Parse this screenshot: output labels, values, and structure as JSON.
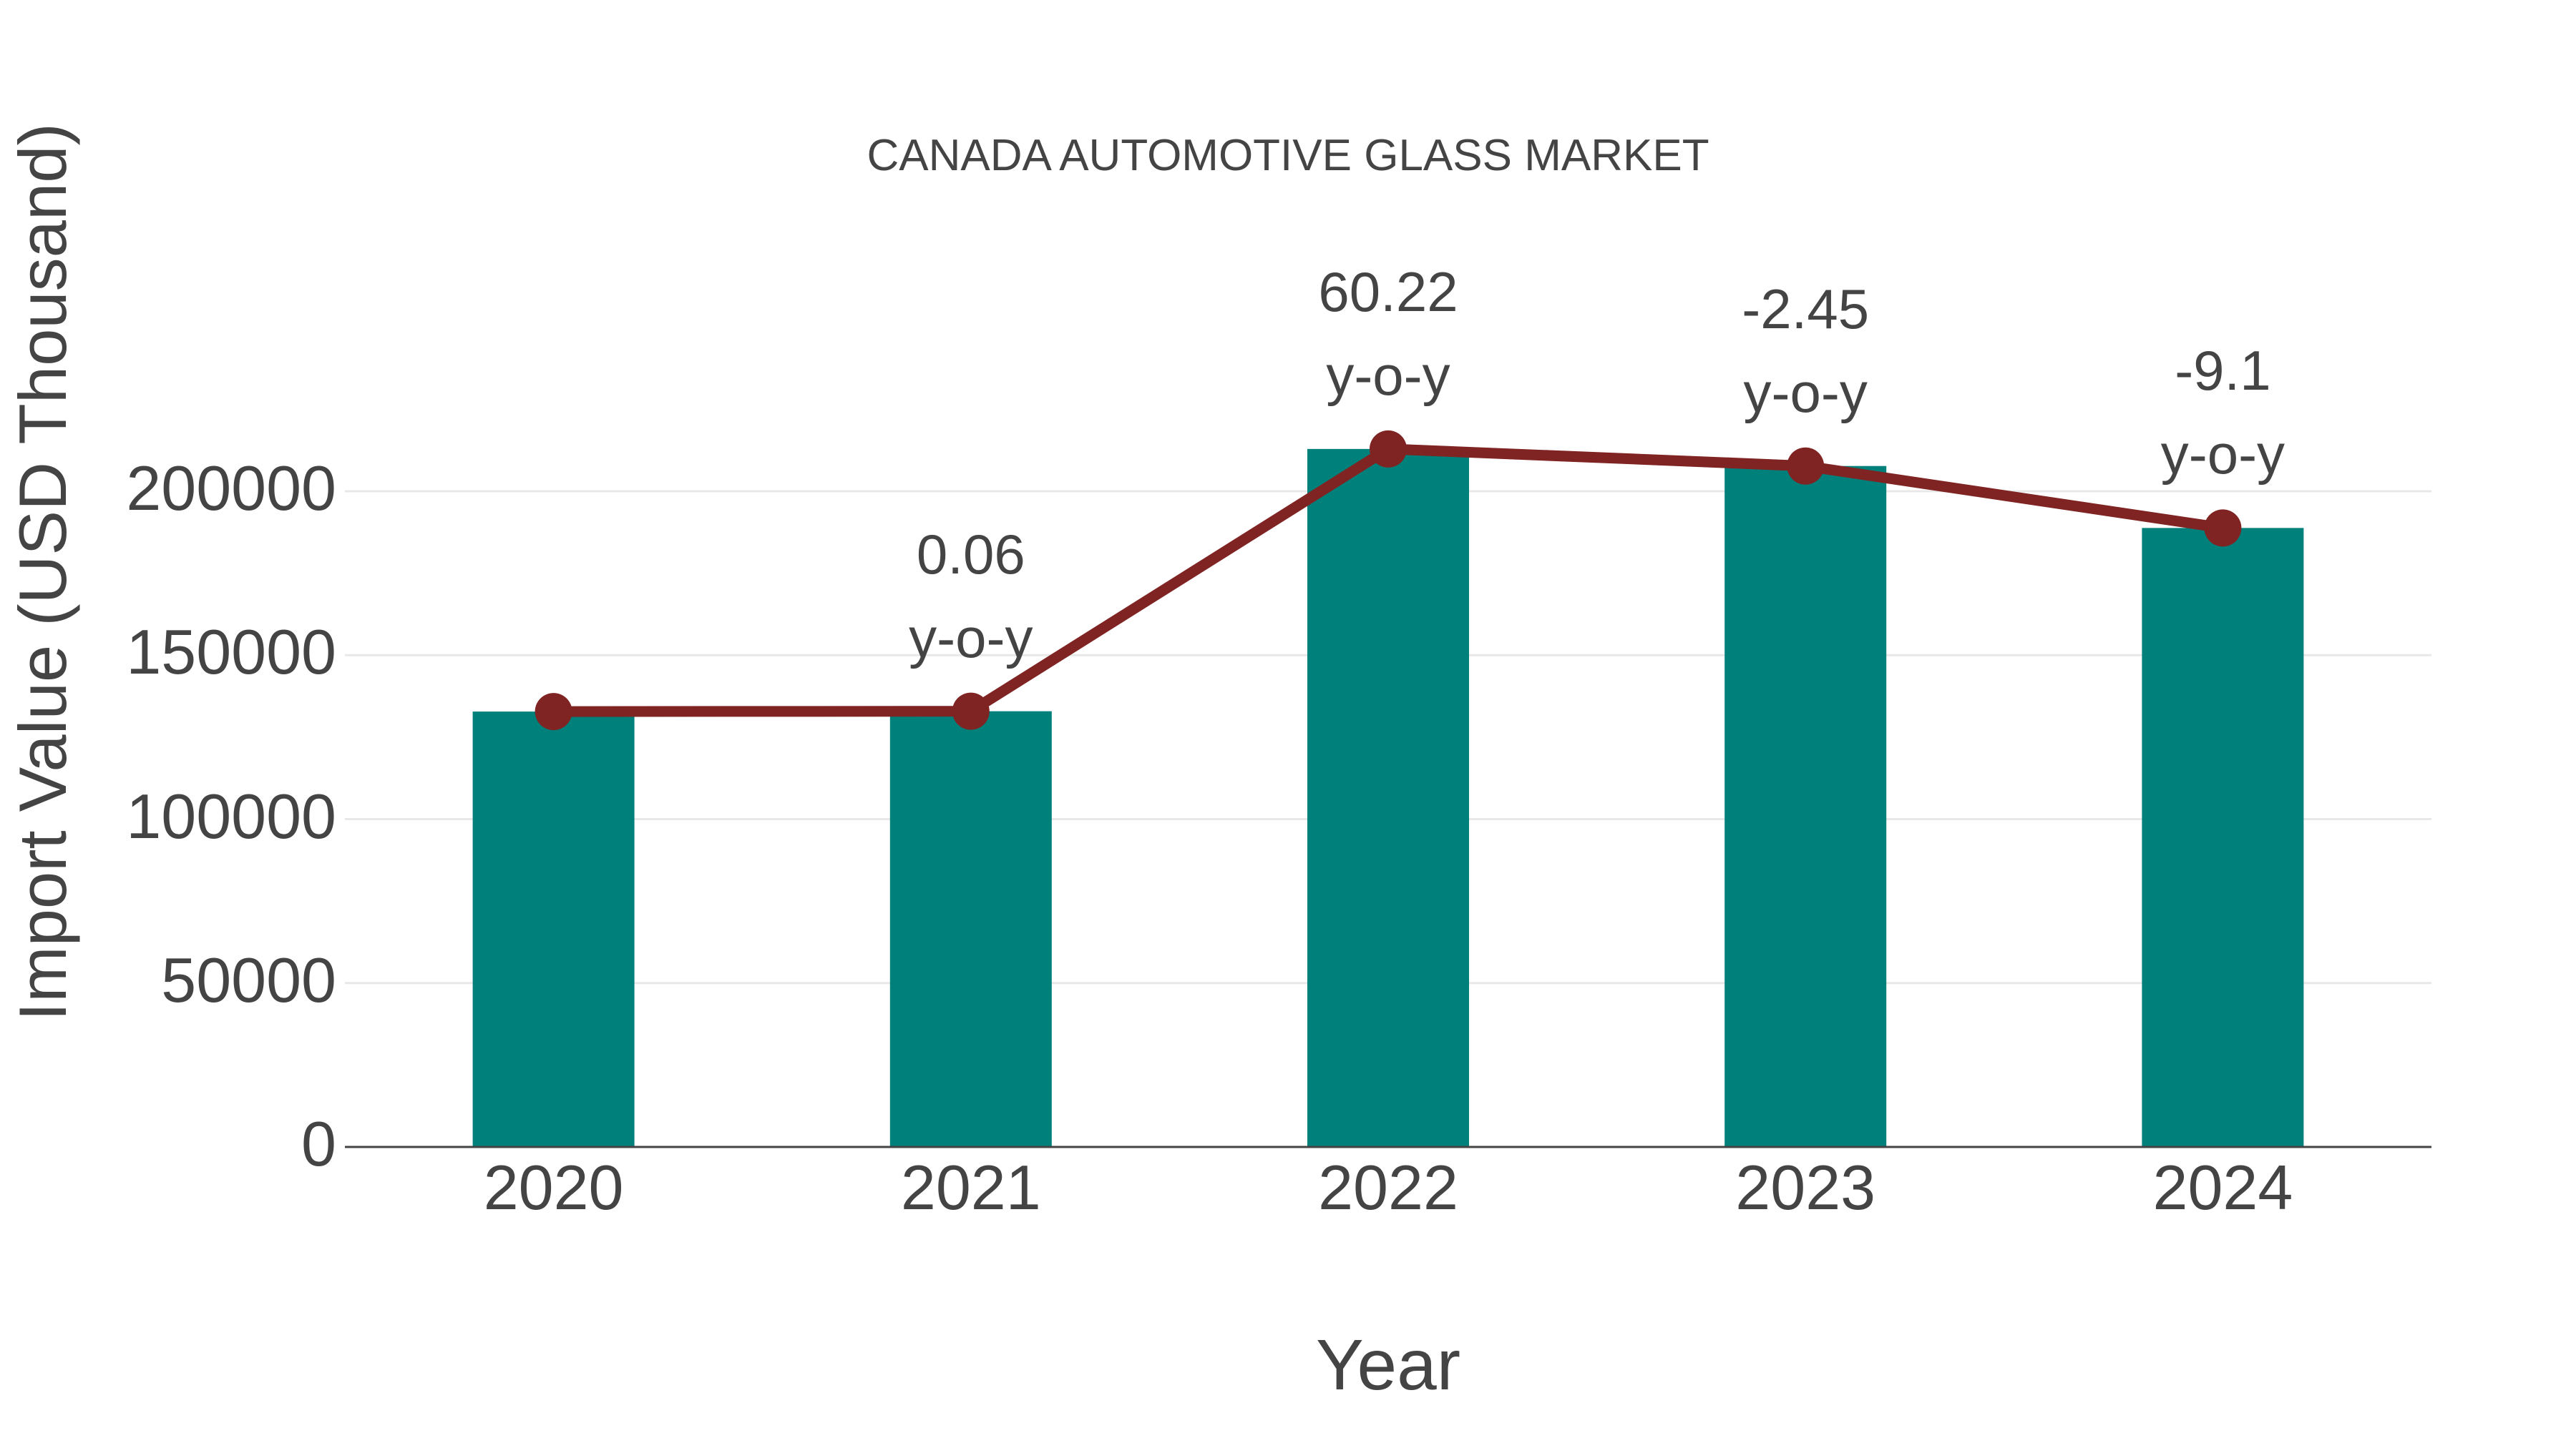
{
  "title": "CANADA AUTOMOTIVE GLASS MARKET",
  "chart_data": {
    "type": "bar",
    "title": "CANADA AUTOMOTIVE GLASS MARKET",
    "xlabel": "Year",
    "ylabel": "Import Value (USD Thousand)",
    "categories": [
      "2020",
      "2021",
      "2022",
      "2023",
      "2024"
    ],
    "series": [
      {
        "name": "import-value-bars",
        "type": "bar",
        "color": "#00807B",
        "values": [
          132800,
          132900,
          212900,
          207700,
          188800
        ]
      },
      {
        "name": "import-value-trend-line",
        "type": "line",
        "color": "#7F2423",
        "values": [
          132800,
          132900,
          212900,
          207700,
          188800
        ]
      }
    ],
    "annotations": [
      {
        "x": "2021",
        "lines": [
          "0.06",
          "y-o-y"
        ]
      },
      {
        "x": "2022",
        "lines": [
          "60.22",
          "y-o-y"
        ]
      },
      {
        "x": "2023",
        "lines": [
          "-2.45",
          "y-o-y"
        ]
      },
      {
        "x": "2024",
        "lines": [
          "-9.1",
          "y-o-y"
        ]
      }
    ],
    "yticks": [
      0,
      50000,
      100000,
      150000,
      200000
    ],
    "ylim": [
      0,
      229000
    ],
    "grid": true,
    "legend": false,
    "colors": {
      "bar": "#00807B",
      "line": "#7F2423",
      "text": "#444444",
      "gridline": "#e8e8e8",
      "axis_line": "#444444",
      "background": "#ffffff"
    }
  }
}
